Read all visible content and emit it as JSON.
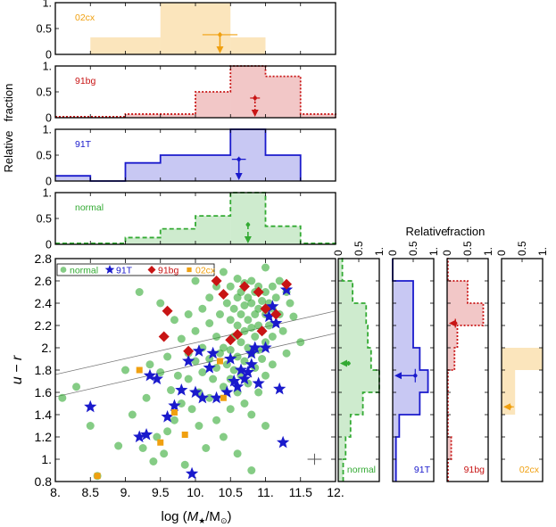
{
  "chart_data": {
    "type": "scatter",
    "xlabel_prefix": "log (",
    "xlabel_M": "M",
    "xlabel_star": "★",
    "xlabel_slash": "/M",
    "xlabel_sun": "⊙",
    "xlabel_suffix": ")",
    "ylabel": "u − r",
    "xlim": [
      8.0,
      12.0
    ],
    "ylim": [
      0.8,
      2.8
    ],
    "x_ticks": [
      "8.",
      "8.5",
      "9.",
      "9.5",
      "10.",
      "10.5",
      "11.",
      "11.5",
      "12."
    ],
    "y_ticks": [
      "0.8",
      "1.",
      "1.2",
      "1.4",
      "1.6",
      "1.8",
      "2.",
      "2.2",
      "2.4",
      "2.6",
      "2.8"
    ],
    "hist_ticks": [
      "0",
      "0.5",
      "1."
    ],
    "hist_ylabel_1": "Relative",
    "hist_ylabel_2": "fraction",
    "side_label_1": "Relative",
    "side_label_2": "fraction",
    "colors": {
      "normal": "#33aa33",
      "91T": "#1a1acc",
      "91bg": "#c81414",
      "02cx": "#f0a010"
    },
    "legend": [
      {
        "key": "normal",
        "label": "normal",
        "marker": "circle"
      },
      {
        "key": "91T",
        "label": "91T",
        "marker": "star"
      },
      {
        "key": "91bg",
        "label": "91bg",
        "marker": "diamond"
      },
      {
        "key": "02cx",
        "label": "02cx",
        "marker": "square"
      }
    ],
    "lines": [
      {
        "x": [
          8.0,
          12.0
        ],
        "y": [
          1.76,
          2.33
        ]
      },
      {
        "x": [
          8.0,
          12.0
        ],
        "y": [
          1.56,
          2.13
        ]
      }
    ],
    "mass_histograms": [
      {
        "key": "02cx",
        "label": "02cx",
        "style": "solid",
        "bins": [
          [
            8.5,
            9.5,
            0.33
          ],
          [
            9.5,
            10.5,
            1.0
          ],
          [
            10.5,
            11.0,
            0.33
          ]
        ],
        "marker": {
          "x": 10.35,
          "y": 0.38,
          "xerr": 0.25,
          "yerr": 0.05
        }
      },
      {
        "key": "91bg",
        "label": "91bg",
        "style": "dotted",
        "bins": [
          [
            8.0,
            8.5,
            0.02
          ],
          [
            8.5,
            9.0,
            0.02
          ],
          [
            9.0,
            9.5,
            0.07
          ],
          [
            9.5,
            10.0,
            0.07
          ],
          [
            10.0,
            10.5,
            0.5
          ],
          [
            10.5,
            11.0,
            1.0
          ],
          [
            11.0,
            11.5,
            0.8
          ],
          [
            11.5,
            12.0,
            0.07
          ]
        ],
        "marker": {
          "x": 10.85,
          "y": 0.38,
          "xerr": 0.07,
          "yerr": 0.06
        }
      },
      {
        "key": "91T",
        "label": "91T",
        "style": "solid",
        "bins": [
          [
            8.0,
            8.5,
            0.1
          ],
          [
            8.5,
            9.0,
            0.0
          ],
          [
            9.0,
            9.5,
            0.35
          ],
          [
            9.5,
            10.0,
            0.5
          ],
          [
            10.0,
            10.5,
            0.5
          ],
          [
            10.5,
            11.0,
            1.0
          ],
          [
            11.0,
            11.5,
            0.5
          ]
        ],
        "marker": {
          "x": 10.62,
          "y": 0.42,
          "xerr": 0.1,
          "yerr": 0.05
        }
      },
      {
        "key": "normal",
        "label": "normal",
        "style": "dashed",
        "bins": [
          [
            8.0,
            8.5,
            0.02
          ],
          [
            8.5,
            9.0,
            0.02
          ],
          [
            9.0,
            9.5,
            0.13
          ],
          [
            9.5,
            10.0,
            0.3
          ],
          [
            10.0,
            10.5,
            0.55
          ],
          [
            10.5,
            11.0,
            1.0
          ],
          [
            11.0,
            11.5,
            0.35
          ],
          [
            11.5,
            12.0,
            0.02
          ]
        ],
        "marker": {
          "x": 10.75,
          "y": 0.38,
          "xerr": 0.03,
          "yerr": 0.05
        }
      }
    ],
    "color_histograms": [
      {
        "key": "normal",
        "label": "normal",
        "style": "dashed",
        "bins": [
          [
            0.8,
            1.0,
            0.12
          ],
          [
            1.0,
            1.2,
            0.18
          ],
          [
            1.2,
            1.4,
            0.3
          ],
          [
            1.4,
            1.6,
            0.6
          ],
          [
            1.6,
            1.8,
            1.0
          ],
          [
            1.8,
            2.0,
            0.8
          ],
          [
            2.0,
            2.2,
            0.72
          ],
          [
            2.2,
            2.4,
            0.68
          ],
          [
            2.4,
            2.6,
            0.35
          ],
          [
            2.6,
            2.8,
            0.1
          ]
        ],
        "marker": {
          "y": 1.86,
          "x": 0.25,
          "yerr": 0.02,
          "xerr": 0.05
        }
      },
      {
        "key": "91T",
        "label": "91T",
        "style": "solid",
        "bins": [
          [
            0.8,
            1.0,
            0.08
          ],
          [
            1.0,
            1.2,
            0.08
          ],
          [
            1.2,
            1.4,
            0.16
          ],
          [
            1.4,
            1.6,
            0.66
          ],
          [
            1.6,
            1.8,
            0.86
          ],
          [
            1.8,
            2.0,
            0.66
          ],
          [
            2.0,
            2.2,
            0.5
          ],
          [
            2.2,
            2.4,
            0.5
          ],
          [
            2.4,
            2.6,
            0.5
          ],
          [
            2.6,
            2.8,
            0.0
          ]
        ],
        "marker": {
          "y": 1.75,
          "x": 0.55,
          "yerr": 0.06,
          "xerr": 0.05
        }
      },
      {
        "key": "91bg",
        "label": "91bg",
        "style": "dotted",
        "bins": [
          [
            0.8,
            1.0,
            0.02
          ],
          [
            1.0,
            1.2,
            0.1
          ],
          [
            1.2,
            1.4,
            0.02
          ],
          [
            1.4,
            1.6,
            0.02
          ],
          [
            1.6,
            1.8,
            0.02
          ],
          [
            1.8,
            2.0,
            0.18
          ],
          [
            2.0,
            2.2,
            0.25
          ],
          [
            2.2,
            2.4,
            0.88
          ],
          [
            2.4,
            2.6,
            0.5
          ],
          [
            2.6,
            2.8,
            0.02
          ]
        ],
        "marker": {
          "y": 2.22,
          "x": 0.2,
          "yerr": 0.04,
          "xerr": 0.05
        }
      },
      {
        "key": "02cx",
        "label": "02cx",
        "style": "solid",
        "bins": [
          [
            0.8,
            1.0,
            0.0
          ],
          [
            1.0,
            1.2,
            0.0
          ],
          [
            1.2,
            1.4,
            0.0
          ],
          [
            1.4,
            1.6,
            0.33
          ],
          [
            1.6,
            1.8,
            0.33
          ],
          [
            1.8,
            2.0,
            1.0
          ],
          [
            2.0,
            2.2,
            0.0
          ]
        ],
        "marker": {
          "y": 1.47,
          "x": 0.2,
          "yerr": 0.02,
          "xerr": 0.1
        }
      }
    ],
    "series": [
      {
        "name": "normal",
        "marker": "circle",
        "points": [
          [
            8.1,
            1.55
          ],
          [
            8.3,
            1.65
          ],
          [
            8.5,
            1.3
          ],
          [
            8.6,
            0.85
          ],
          [
            8.9,
            1.12
          ],
          [
            9.0,
            1.8
          ],
          [
            9.1,
            1.4
          ],
          [
            9.2,
            2.5
          ],
          [
            9.25,
            1.1
          ],
          [
            9.3,
            1.55
          ],
          [
            9.35,
            1.85
          ],
          [
            9.4,
            0.98
          ],
          [
            9.45,
            1.2
          ],
          [
            9.5,
            2.4
          ],
          [
            9.5,
            1.78
          ],
          [
            9.55,
            1.05
          ],
          [
            9.6,
            1.92
          ],
          [
            9.6,
            1.25
          ],
          [
            9.65,
            1.62
          ],
          [
            9.7,
            2.25
          ],
          [
            9.7,
            1.35
          ],
          [
            9.75,
            1.75
          ],
          [
            9.8,
            2.08
          ],
          [
            9.8,
            1.5
          ],
          [
            9.85,
            0.95
          ],
          [
            9.9,
            2.3
          ],
          [
            9.9,
            1.95
          ],
          [
            9.9,
            1.72
          ],
          [
            9.95,
            1.45
          ],
          [
            10.0,
            2.6
          ],
          [
            10.0,
            2.15
          ],
          [
            10.0,
            1.88
          ],
          [
            10.05,
            1.6
          ],
          [
            10.05,
            1.3
          ],
          [
            10.1,
            2.35
          ],
          [
            10.1,
            2.0
          ],
          [
            10.1,
            1.78
          ],
          [
            10.15,
            1.1
          ],
          [
            10.2,
            2.45
          ],
          [
            10.2,
            2.22
          ],
          [
            10.2,
            1.9
          ],
          [
            10.2,
            1.55
          ],
          [
            10.25,
            1.72
          ],
          [
            10.3,
            2.55
          ],
          [
            10.3,
            2.1
          ],
          [
            10.3,
            1.82
          ],
          [
            10.3,
            1.35
          ],
          [
            10.35,
            2.3
          ],
          [
            10.35,
            1.95
          ],
          [
            10.4,
            2.68
          ],
          [
            10.4,
            2.0
          ],
          [
            10.4,
            1.65
          ],
          [
            10.4,
            1.2
          ],
          [
            10.45,
            2.4
          ],
          [
            10.45,
            1.85
          ],
          [
            10.5,
            2.55
          ],
          [
            10.5,
            2.25
          ],
          [
            10.5,
            1.98
          ],
          [
            10.5,
            1.72
          ],
          [
            10.5,
            1.45
          ],
          [
            10.55,
            2.35
          ],
          [
            10.55,
            2.1
          ],
          [
            10.55,
            1.8
          ],
          [
            10.6,
            2.62
          ],
          [
            10.6,
            2.45
          ],
          [
            10.6,
            2.2
          ],
          [
            10.6,
            1.92
          ],
          [
            10.6,
            1.6
          ],
          [
            10.6,
            1.05
          ],
          [
            10.65,
            2.5
          ],
          [
            10.65,
            2.3
          ],
          [
            10.65,
            2.05
          ],
          [
            10.65,
            1.75
          ],
          [
            10.7,
            2.58
          ],
          [
            10.7,
            2.38
          ],
          [
            10.7,
            2.15
          ],
          [
            10.7,
            1.88
          ],
          [
            10.7,
            1.5
          ],
          [
            10.75,
            2.45
          ],
          [
            10.75,
            2.25
          ],
          [
            10.75,
            2.0
          ],
          [
            10.75,
            1.68
          ],
          [
            10.8,
            2.6
          ],
          [
            10.8,
            2.4
          ],
          [
            10.8,
            2.18
          ],
          [
            10.8,
            1.95
          ],
          [
            10.8,
            1.4
          ],
          [
            10.8,
            0.9
          ],
          [
            10.85,
            2.5
          ],
          [
            10.85,
            2.3
          ],
          [
            10.85,
            2.1
          ],
          [
            10.85,
            1.82
          ],
          [
            10.9,
            2.55
          ],
          [
            10.9,
            2.35
          ],
          [
            10.9,
            2.2
          ],
          [
            10.9,
            1.98
          ],
          [
            10.9,
            1.6
          ],
          [
            10.95,
            2.42
          ],
          [
            10.95,
            2.15
          ],
          [
            10.95,
            1.9
          ],
          [
            11.0,
            2.72
          ],
          [
            11.0,
            2.5
          ],
          [
            11.0,
            2.3
          ],
          [
            11.0,
            2.05
          ],
          [
            11.0,
            1.75
          ],
          [
            11.0,
            1.3
          ],
          [
            11.05,
            2.4
          ],
          [
            11.05,
            2.2
          ],
          [
            11.1,
            2.55
          ],
          [
            11.1,
            2.35
          ],
          [
            11.1,
            2.1
          ],
          [
            11.1,
            1.85
          ],
          [
            11.15,
            2.45
          ],
          [
            11.2,
            2.6
          ],
          [
            11.2,
            2.3
          ],
          [
            11.25,
            2.15
          ],
          [
            11.3,
            2.5
          ],
          [
            11.3,
            1.95
          ],
          [
            11.35,
            2.4
          ],
          [
            11.4,
            2.28
          ],
          [
            11.5,
            2.05
          ]
        ]
      },
      {
        "name": "91T",
        "marker": "star",
        "points": [
          [
            8.5,
            1.47
          ],
          [
            9.2,
            1.2
          ],
          [
            9.3,
            1.22
          ],
          [
            9.35,
            1.75
          ],
          [
            9.45,
            1.72
          ],
          [
            9.6,
            1.38
          ],
          [
            9.7,
            1.48
          ],
          [
            9.8,
            1.62
          ],
          [
            9.9,
            1.88
          ],
          [
            9.95,
            0.87
          ],
          [
            10.0,
            1.6
          ],
          [
            10.05,
            1.97
          ],
          [
            10.1,
            1.55
          ],
          [
            10.2,
            1.82
          ],
          [
            10.25,
            1.95
          ],
          [
            10.3,
            1.55
          ],
          [
            10.45,
            1.6
          ],
          [
            10.5,
            1.9
          ],
          [
            10.55,
            1.7
          ],
          [
            10.6,
            1.65
          ],
          [
            10.65,
            1.8
          ],
          [
            10.7,
            1.72
          ],
          [
            10.75,
            1.78
          ],
          [
            10.8,
            1.85
          ],
          [
            10.8,
            1.95
          ],
          [
            10.85,
            2.0
          ],
          [
            10.9,
            1.68
          ],
          [
            11.0,
            2.0
          ],
          [
            11.05,
            2.28
          ],
          [
            11.1,
            2.37
          ],
          [
            11.15,
            2.22
          ],
          [
            11.2,
            1.63
          ],
          [
            11.25,
            1.15
          ],
          [
            11.3,
            2.52
          ]
        ]
      },
      {
        "name": "91bg",
        "marker": "diamond",
        "points": [
          [
            9.55,
            2.1
          ],
          [
            9.6,
            2.33
          ],
          [
            9.9,
            1.97
          ],
          [
            10.3,
            2.6
          ],
          [
            10.4,
            2.48
          ],
          [
            10.5,
            2.07
          ],
          [
            10.6,
            2.12
          ],
          [
            10.7,
            2.55
          ],
          [
            10.9,
            2.5
          ],
          [
            10.95,
            2.15
          ],
          [
            11.0,
            2.35
          ],
          [
            11.15,
            2.3
          ],
          [
            11.3,
            2.57
          ]
        ]
      },
      {
        "name": "02cx",
        "marker": "square",
        "points": [
          [
            8.6,
            0.85
          ],
          [
            9.2,
            1.8
          ],
          [
            9.5,
            1.15
          ],
          [
            9.7,
            1.42
          ],
          [
            9.85,
            1.22
          ],
          [
            10.35,
            1.88
          ],
          [
            10.4,
            1.55
          ]
        ]
      }
    ],
    "error_cross": {
      "x": 11.7,
      "y": 1.0,
      "xerr": 0.1,
      "yerr": 0.05
    }
  }
}
